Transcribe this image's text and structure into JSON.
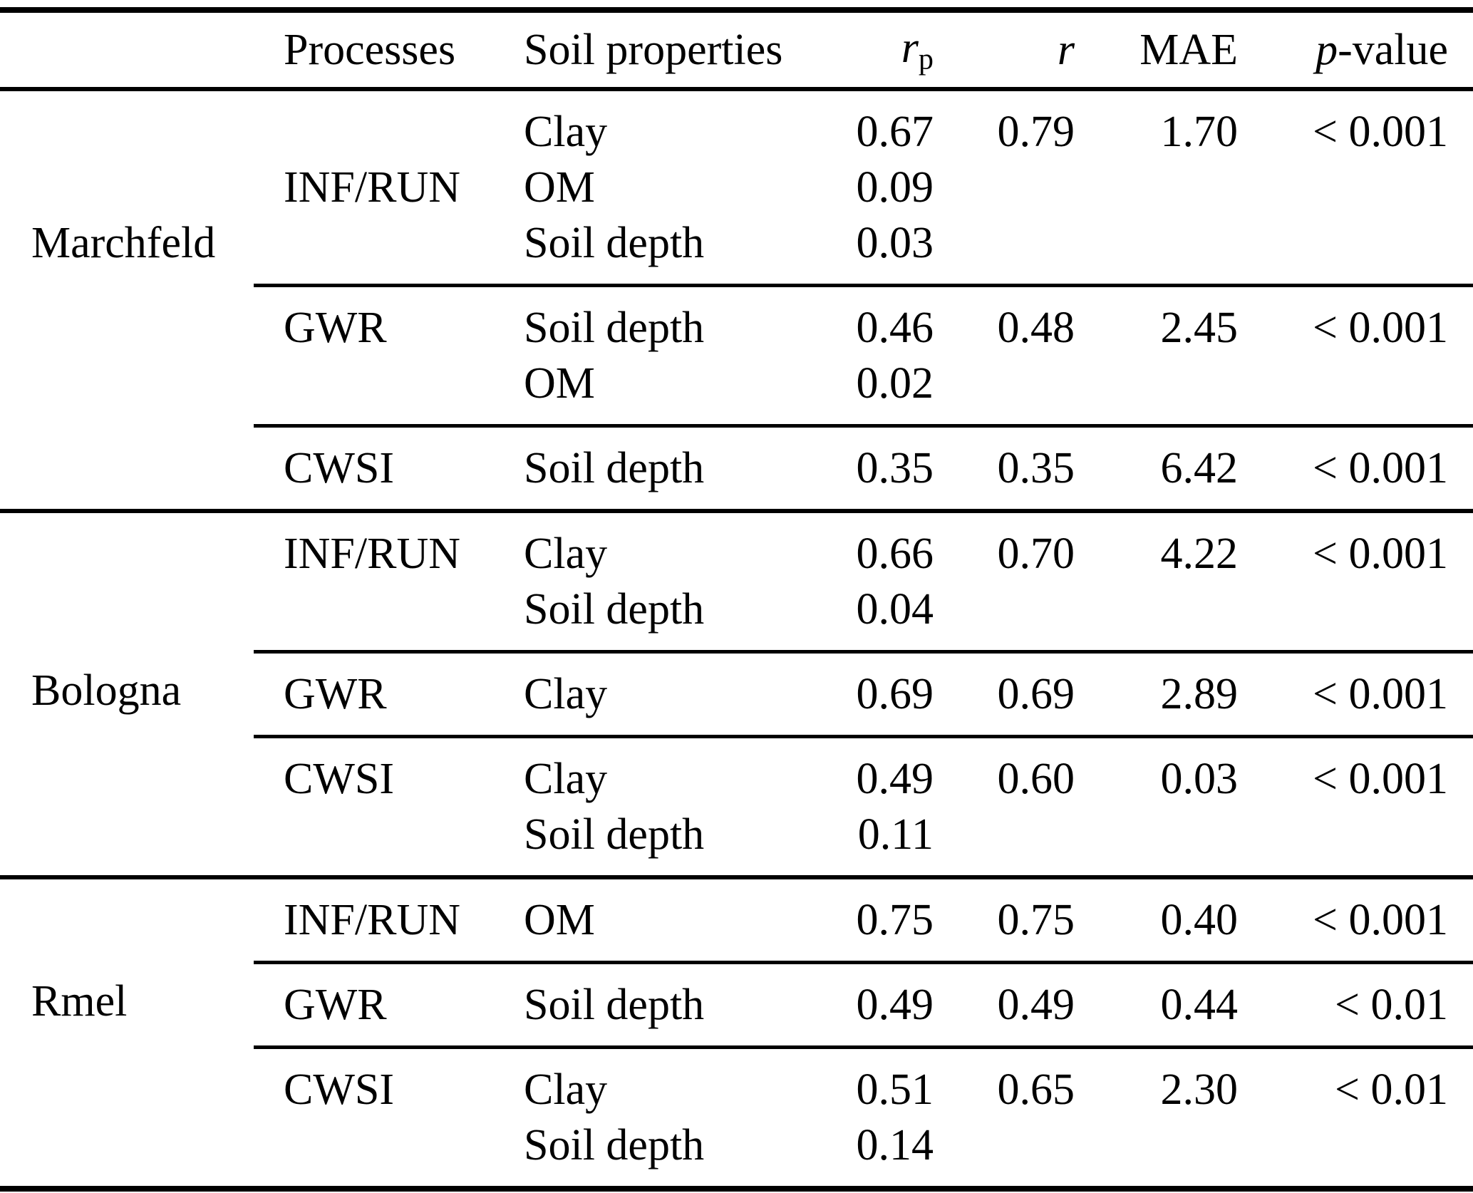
{
  "header": {
    "processes": "Processes",
    "soil_properties": "Soil properties",
    "rp_base": "r",
    "rp_sub": "p",
    "r": "r",
    "mae": "MAE",
    "pvalue_italic": "p",
    "pvalue_rest": "-value"
  },
  "sections": [
    {
      "site": "Marchfeld",
      "site_position": {
        "subsection": 0,
        "line": 2
      },
      "subsections": [
        {
          "process": "INF/RUN",
          "process_line": 1,
          "rows": [
            {
              "property": "Clay",
              "rp": "0.67",
              "r": "0.79",
              "mae": "1.70",
              "p": "< 0.001"
            },
            {
              "property": "OM",
              "rp": "0.09",
              "r": "",
              "mae": "",
              "p": ""
            },
            {
              "property": "Soil depth",
              "rp": "0.03",
              "r": "",
              "mae": "",
              "p": ""
            }
          ]
        },
        {
          "process": "GWR",
          "process_line": 0,
          "rows": [
            {
              "property": "Soil depth",
              "rp": "0.46",
              "r": "0.48",
              "mae": "2.45",
              "p": "< 0.001"
            },
            {
              "property": "OM",
              "rp": "0.02",
              "r": "",
              "mae": "",
              "p": ""
            }
          ]
        },
        {
          "process": "CWSI",
          "process_line": 0,
          "rows": [
            {
              "property": "Soil depth",
              "rp": "0.35",
              "r": "0.35",
              "mae": "6.42",
              "p": "< 0.001"
            }
          ]
        }
      ]
    },
    {
      "site": "Bologna",
      "site_position": {
        "subsection": 1,
        "line": 0
      },
      "subsections": [
        {
          "process": "INF/RUN",
          "process_line": 0,
          "rows": [
            {
              "property": "Clay",
              "rp": "0.66",
              "r": "0.70",
              "mae": "4.22",
              "p": "< 0.001"
            },
            {
              "property": "Soil depth",
              "rp": "0.04",
              "r": "",
              "mae": "",
              "p": ""
            }
          ]
        },
        {
          "process": "GWR",
          "process_line": 0,
          "rows": [
            {
              "property": "Clay",
              "rp": "0.69",
              "r": "0.69",
              "mae": "2.89",
              "p": "< 0.001"
            }
          ]
        },
        {
          "process": "CWSI",
          "process_line": 0,
          "rows": [
            {
              "property": "Clay",
              "rp": "0.49",
              "r": "0.60",
              "mae": "0.03",
              "p": "< 0.001"
            },
            {
              "property": "Soil depth",
              "rp": "0.11",
              "r": "",
              "mae": "",
              "p": ""
            }
          ]
        }
      ]
    },
    {
      "site": "Rmel",
      "site_position": {
        "subsection": 1,
        "line": 0
      },
      "subsections": [
        {
          "process": "INF/RUN",
          "process_line": 0,
          "rows": [
            {
              "property": "OM",
              "rp": "0.75",
              "r": "0.75",
              "mae": "0.40",
              "p": "< 0.001"
            }
          ]
        },
        {
          "process": "GWR",
          "process_line": 0,
          "rows": [
            {
              "property": "Soil depth",
              "rp": "0.49",
              "r": "0.49",
              "mae": "0.44",
              "p": "< 0.01"
            }
          ]
        },
        {
          "process": "CWSI",
          "process_line": 0,
          "rows": [
            {
              "property": "Clay",
              "rp": "0.51",
              "r": "0.65",
              "mae": "2.30",
              "p": "< 0.01"
            },
            {
              "property": "Soil depth",
              "rp": "0.14",
              "r": "",
              "mae": "",
              "p": ""
            }
          ]
        }
      ]
    }
  ]
}
